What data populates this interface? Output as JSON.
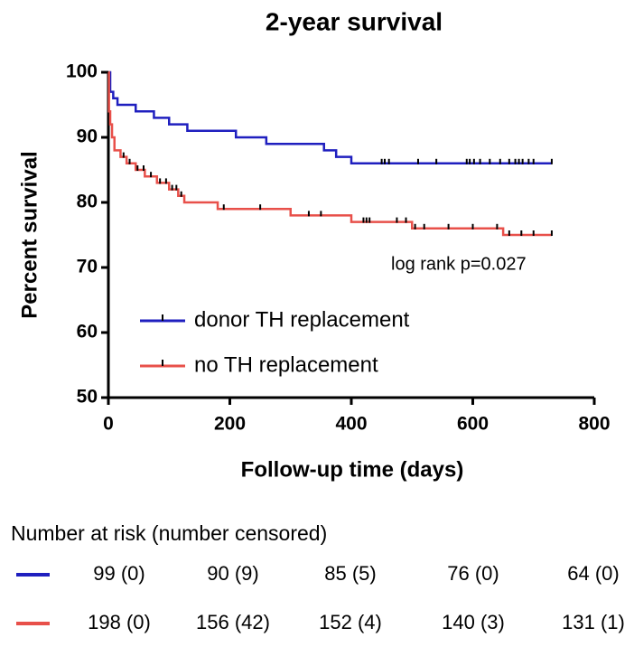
{
  "chart_data": {
    "type": "line",
    "step": "post",
    "title": "2-year survival",
    "y_label": "Percent survival",
    "x_label": "Follow-up time (days)",
    "annotation": "log rank p=0.027",
    "xlim": [
      0,
      800
    ],
    "xticks": [
      0,
      200,
      400,
      600,
      800
    ],
    "ylim": [
      50,
      100
    ],
    "yticks": [
      50,
      60,
      70,
      80,
      90,
      100
    ],
    "grid": false,
    "legend": "lower left",
    "series": [
      {
        "name": "donor TH replacement",
        "color": "#1f1fbf",
        "x": [
          0,
          3,
          8,
          15,
          45,
          75,
          100,
          130,
          210,
          260,
          355,
          375,
          400,
          730
        ],
        "values": [
          100,
          97,
          96,
          95,
          94,
          93,
          92,
          91,
          90,
          89,
          88,
          87,
          86,
          86
        ],
        "censored_x": [
          450,
          455,
          462,
          510,
          540,
          590,
          595,
          602,
          612,
          628,
          645,
          660,
          670,
          676,
          682,
          692,
          700,
          730
        ]
      },
      {
        "name": "no TH replacement",
        "color": "#e8504a",
        "x": [
          0,
          1,
          3,
          6,
          10,
          20,
          30,
          45,
          60,
          80,
          100,
          115,
          125,
          180,
          300,
          400,
          500,
          650,
          730
        ],
        "values": [
          100,
          94,
          92,
          90,
          88,
          87,
          86,
          85,
          84,
          83,
          82,
          81,
          80,
          79,
          78,
          77,
          76,
          75,
          75
        ],
        "censored_x": [
          25,
          35,
          48,
          58,
          70,
          85,
          95,
          105,
          112,
          120,
          190,
          250,
          330,
          350,
          420,
          425,
          430,
          475,
          490,
          505,
          520,
          560,
          600,
          640,
          660,
          680,
          700,
          730
        ]
      }
    ],
    "risk_table": {
      "title": "Number at risk (number censored)",
      "rows": [
        [
          "99 (0)",
          "90 (9)",
          "85 (5)",
          "76 (0)",
          "64 (0)"
        ],
        [
          "198 (0)",
          "156 (42)",
          "152 (4)",
          "140 (3)",
          "131 (1)"
        ]
      ]
    }
  }
}
